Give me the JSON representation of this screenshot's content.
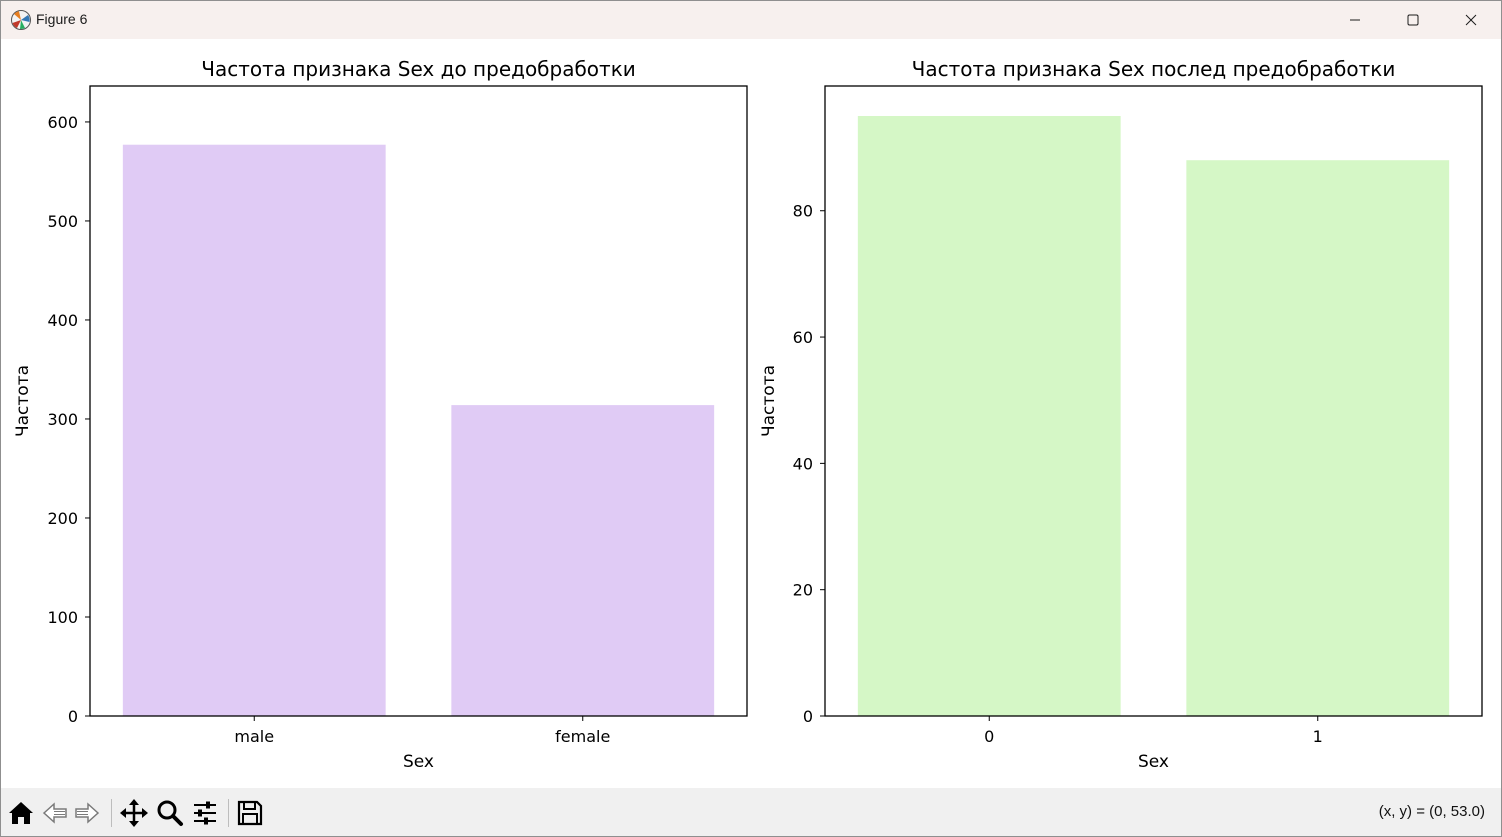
{
  "window": {
    "title": "Figure 6",
    "controls": {
      "minimize": "minimize",
      "maximize": "maximize",
      "close": "close"
    }
  },
  "toolbar": {
    "tools": [
      {
        "name": "home-icon",
        "label": "Home"
      },
      {
        "name": "back-icon",
        "label": "Back"
      },
      {
        "name": "forward-icon",
        "label": "Forward"
      },
      {
        "name": "pan-icon",
        "label": "Pan"
      },
      {
        "name": "zoom-icon",
        "label": "Zoom"
      },
      {
        "name": "configure-subplots-icon",
        "label": "Configure subplots"
      },
      {
        "name": "save-icon",
        "label": "Save"
      }
    ],
    "coords": "(x, y) = (0, 53.0)"
  },
  "chart_data": [
    {
      "type": "bar",
      "title": "Частота признака Sex до предобработки",
      "xlabel": "Sex",
      "ylabel": "Частота",
      "categories": [
        "male",
        "female"
      ],
      "values": [
        577,
        314
      ],
      "ylim": [
        0,
        606
      ],
      "yticks": [
        0,
        100,
        200,
        300,
        400,
        500,
        600
      ],
      "color": "#e0cbf5",
      "grid": false
    },
    {
      "type": "bar",
      "title": "Частота признака Sex послед предобработки",
      "xlabel": "Sex",
      "ylabel": "Частота",
      "categories": [
        "0",
        "1"
      ],
      "values": [
        95,
        88
      ],
      "ylim": [
        0,
        95
      ],
      "yticks": [
        0,
        20,
        40,
        60,
        80
      ],
      "color": "#d5f7c6",
      "grid": false
    }
  ]
}
